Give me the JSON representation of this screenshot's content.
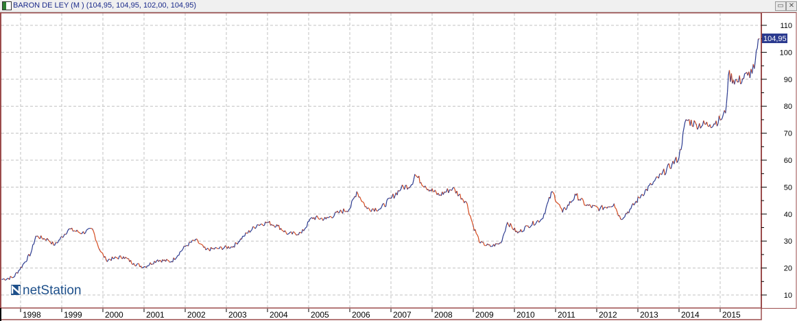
{
  "window": {
    "title": "BARON DE LEY (M ) (104,95, 104,95, 102,00, 104,95)",
    "restore_icon": "restore-icon",
    "close_icon": "close-icon"
  },
  "logo": {
    "text": "netStation"
  },
  "colors": {
    "frame": "#9b4b4b",
    "up": "#2b3a8f",
    "down": "#d4481c",
    "tag_bg": "#2b3a8f",
    "grid": "#c0c0c0"
  },
  "chart_data": {
    "type": "line",
    "title": "",
    "last_price_label": "104,95",
    "ylim": [
      5,
      115
    ],
    "xlim": [
      1997.55,
      2016.0
    ],
    "y_ticks": [
      "10",
      "20",
      "30",
      "40",
      "50",
      "60",
      "70",
      "80",
      "90",
      "100",
      "110"
    ],
    "x_ticks": [
      "1998",
      "1999",
      "2000",
      "2001",
      "2002",
      "2003",
      "2004",
      "2005",
      "2006",
      "2007",
      "2008",
      "2009",
      "2010",
      "2011",
      "2012",
      "2013",
      "2014",
      "2015"
    ],
    "grid": true,
    "points": [
      [
        1997.55,
        15.8
      ],
      [
        1997.83,
        16.6
      ],
      [
        1998.08,
        21.7
      ],
      [
        1998.25,
        25.5
      ],
      [
        1998.37,
        31.8
      ],
      [
        1998.67,
        30.5
      ],
      [
        1998.83,
        28.5
      ],
      [
        1999.17,
        34.4
      ],
      [
        1999.5,
        33
      ],
      [
        1999.75,
        34.4
      ],
      [
        1999.92,
        26.8
      ],
      [
        2000.08,
        23
      ],
      [
        2000.25,
        23.5
      ],
      [
        2000.5,
        24.2
      ],
      [
        2000.75,
        21.7
      ],
      [
        2001,
        20.4
      ],
      [
        2001.33,
        23
      ],
      [
        2001.67,
        22.4
      ],
      [
        2002,
        28
      ],
      [
        2002.25,
        30.5
      ],
      [
        2002.5,
        26.8
      ],
      [
        2002.83,
        27.3
      ],
      [
        2003.17,
        28
      ],
      [
        2003.42,
        31.8
      ],
      [
        2003.75,
        36
      ],
      [
        2004,
        36.9
      ],
      [
        2004.25,
        35.6
      ],
      [
        2004.5,
        32.6
      ],
      [
        2004.83,
        33
      ],
      [
        2005.08,
        38.7
      ],
      [
        2005.42,
        38.2
      ],
      [
        2005.75,
        40.7
      ],
      [
        2006,
        42
      ],
      [
        2006.17,
        48.3
      ],
      [
        2006.42,
        42
      ],
      [
        2006.75,
        42
      ],
      [
        2007,
        45.8
      ],
      [
        2007.25,
        49.6
      ],
      [
        2007.5,
        50.9
      ],
      [
        2007.58,
        54.7
      ],
      [
        2007.83,
        50.4
      ],
      [
        2008.17,
        47
      ],
      [
        2008.5,
        49.6
      ],
      [
        2008.83,
        44.5
      ],
      [
        2009,
        35.6
      ],
      [
        2009.17,
        29.3
      ],
      [
        2009.42,
        28
      ],
      [
        2009.67,
        29.3
      ],
      [
        2009.83,
        36.9
      ],
      [
        2010.08,
        33
      ],
      [
        2010.33,
        35.6
      ],
      [
        2010.67,
        38.2
      ],
      [
        2010.92,
        48.3
      ],
      [
        2011.17,
        40.7
      ],
      [
        2011.5,
        47
      ],
      [
        2011.75,
        43.2
      ],
      [
        2012.08,
        42
      ],
      [
        2012.42,
        43.8
      ],
      [
        2012.58,
        38.2
      ],
      [
        2012.83,
        42
      ],
      [
        2013.08,
        47
      ],
      [
        2013.33,
        50.9
      ],
      [
        2013.58,
        54.7
      ],
      [
        2013.83,
        58.5
      ],
      [
        2014,
        61
      ],
      [
        2014.17,
        75
      ],
      [
        2014.42,
        73.2
      ],
      [
        2014.75,
        73.2
      ],
      [
        2015,
        75
      ],
      [
        2015.13,
        77.5
      ],
      [
        2015.2,
        91.5
      ],
      [
        2015.42,
        89
      ],
      [
        2015.67,
        91.5
      ],
      [
        2015.83,
        94
      ],
      [
        2015.95,
        104.95
      ]
    ]
  }
}
